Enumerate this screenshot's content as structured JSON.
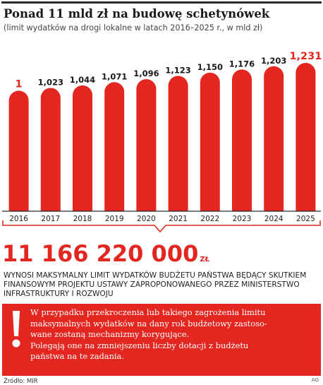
{
  "header": {
    "title": "Ponad 11 mld zł na budowę schetynówek",
    "subtitle": "(limit wydatków na drogi lokalne w latach 2016–2025 r., w mld zł)"
  },
  "chart_data": {
    "type": "bar",
    "categories": [
      "2016",
      "2017",
      "2018",
      "2019",
      "2020",
      "2021",
      "2022",
      "2023",
      "2024",
      "2025"
    ],
    "values": [
      1,
      1.023,
      1.044,
      1.071,
      1.096,
      1.123,
      1.15,
      1.176,
      1.203,
      1.231
    ],
    "labels": [
      "1",
      "1,023",
      "1,044",
      "1,071",
      "1,096",
      "1,123",
      "1,150",
      "1,176",
      "1,203",
      "1,231"
    ],
    "highlighted": [
      "2016",
      "2025"
    ],
    "title": "",
    "xlabel": "",
    "ylabel": "",
    "ylim": [
      0,
      1.231
    ],
    "grid": false,
    "legend": "none"
  },
  "summary": {
    "total": "11 166 220 000",
    "unit": "ZŁ",
    "description": "WYNOSI MAKSYMALNY LIMIT WYDATKÓW BUDŻETU PAŃSTWA BĘDĄCY SKUTKIEM FINANSOWYM PROJEKTU USTAWY ZAPROPONOWANEGO PRZEZ MINISTERSTWO INFRASTRUKTURY I ROZWOJU"
  },
  "notice": {
    "icon": "exclamation-icon",
    "text_lines": [
      "W przypadku przekroczenia lub takiego zagrożenia limitu",
      "maksymalnych wydatków na dany rok budżetowy zastoso-",
      "wane zostaną mechanizmy korygujące.",
      "Polegają one na zmniejszeniu liczby dotacji z budżetu",
      "państwa na te zadania."
    ]
  },
  "footer": {
    "source": "Źródło: MIR",
    "signature": "AG"
  },
  "colors": {
    "bar": "#e3261f",
    "accent": "#e3261f",
    "text": "#222222"
  }
}
